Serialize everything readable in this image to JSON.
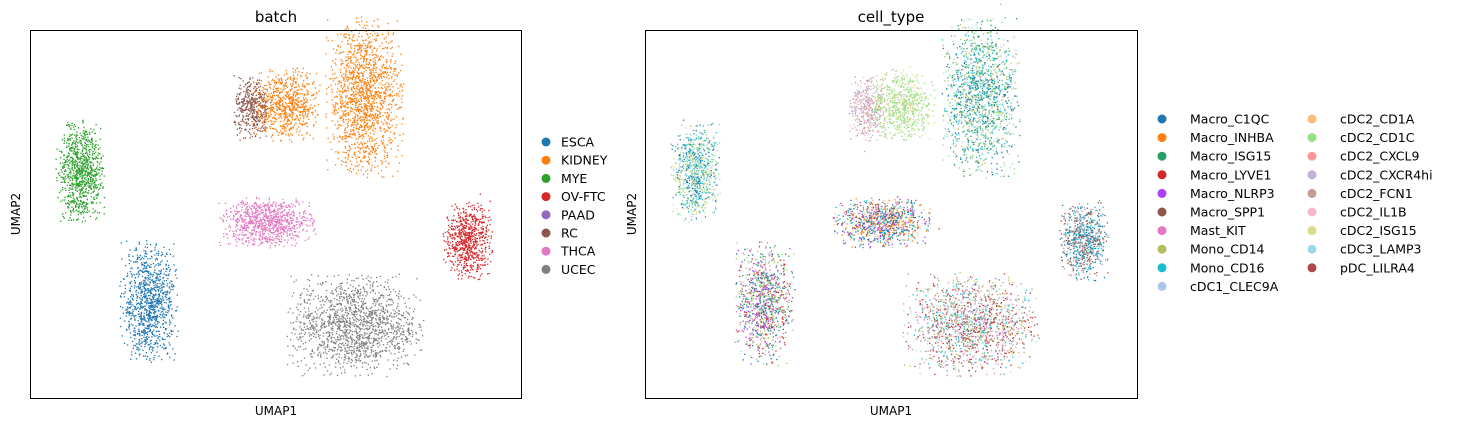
{
  "chart_data": [
    {
      "type": "scatter",
      "title": "batch",
      "xlabel": "UMAP1",
      "ylabel": "UMAP2",
      "grid": false,
      "ticks": false,
      "legend_position": "right",
      "legend": [
        {
          "name": "ESCA",
          "color": "#1f77b4"
        },
        {
          "name": "KIDNEY",
          "color": "#ff7f0e"
        },
        {
          "name": "MYE",
          "color": "#2ca02c"
        },
        {
          "name": "OV-FTC",
          "color": "#d62728"
        },
        {
          "name": "PAAD",
          "color": "#9467bd"
        },
        {
          "name": "RC",
          "color": "#8c564b"
        },
        {
          "name": "THCA",
          "color": "#e377c2"
        },
        {
          "name": "UCEC",
          "color": "#7f7f7f"
        }
      ],
      "clusters": [
        {
          "series": "MYE",
          "x": 0.1,
          "y": 0.62,
          "sx": 0.05,
          "sy": 0.14,
          "n": 900
        },
        {
          "series": "ESCA",
          "x": 0.24,
          "y": 0.26,
          "sx": 0.06,
          "sy": 0.17,
          "n": 1000
        },
        {
          "series": "THCA",
          "x": 0.48,
          "y": 0.48,
          "sx": 0.1,
          "sy": 0.07,
          "n": 900
        },
        {
          "series": "OV-FTC",
          "x": 0.89,
          "y": 0.43,
          "sx": 0.05,
          "sy": 0.11,
          "n": 700
        },
        {
          "series": "UCEC",
          "x": 0.66,
          "y": 0.2,
          "sx": 0.14,
          "sy": 0.14,
          "n": 1500
        },
        {
          "series": "RC",
          "x": 0.45,
          "y": 0.79,
          "sx": 0.04,
          "sy": 0.09,
          "n": 400
        },
        {
          "series": "KIDNEY",
          "x": 0.52,
          "y": 0.8,
          "sx": 0.07,
          "sy": 0.1,
          "n": 700
        },
        {
          "series": "KIDNEY",
          "x": 0.68,
          "y": 0.82,
          "sx": 0.08,
          "sy": 0.22,
          "n": 1500
        }
      ]
    },
    {
      "type": "scatter",
      "title": "cell_type",
      "xlabel": "UMAP1",
      "ylabel": "UMAP2",
      "grid": false,
      "ticks": false,
      "legend_position": "right",
      "legend": [
        {
          "name": "Macro_C1QC",
          "color": "#1f77b4"
        },
        {
          "name": "Macro_INHBA",
          "color": "#ff7f0e"
        },
        {
          "name": "Macro_ISG15",
          "color": "#279e68"
        },
        {
          "name": "Macro_LYVE1",
          "color": "#d62728"
        },
        {
          "name": "Macro_NLRP3",
          "color": "#aa40fc"
        },
        {
          "name": "Macro_SPP1",
          "color": "#8c564b"
        },
        {
          "name": "Mast_KIT",
          "color": "#e377c2"
        },
        {
          "name": "Mono_CD14",
          "color": "#b5bd61"
        },
        {
          "name": "Mono_CD16",
          "color": "#17becf"
        },
        {
          "name": "cDC1_CLEC9A",
          "color": "#aec7e8"
        },
        {
          "name": "cDC2_CD1A",
          "color": "#ffbb78"
        },
        {
          "name": "cDC2_CD1C",
          "color": "#98df8a"
        },
        {
          "name": "cDC2_CXCL9",
          "color": "#ff9896"
        },
        {
          "name": "cDC2_CXCR4hi",
          "color": "#c5b0d5"
        },
        {
          "name": "cDC2_FCN1",
          "color": "#c49c94"
        },
        {
          "name": "cDC2_IL1B",
          "color": "#f7b6d2"
        },
        {
          "name": "cDC2_ISG15",
          "color": "#dbdb8d"
        },
        {
          "name": "cDC3_LAMP3",
          "color": "#9edae5"
        },
        {
          "name": "pDC_LILRA4",
          "color": "#ad494a"
        }
      ],
      "clusters": [
        {
          "x": 0.1,
          "y": 0.62,
          "sx": 0.05,
          "sy": 0.14,
          "n": 900,
          "mix": [
            "cDC2_CD1C",
            "cDC3_LAMP3",
            "Macro_C1QC",
            "cDC2_ISG15",
            "Mono_CD16"
          ]
        },
        {
          "x": 0.24,
          "y": 0.26,
          "sx": 0.06,
          "sy": 0.17,
          "n": 1000,
          "mix": [
            "Macro_LYVE1",
            "Macro_C1QC",
            "Macro_NLRP3",
            "Mono_CD14",
            "Macro_ISG15",
            "Mast_KIT",
            "cDC2_CD1C"
          ]
        },
        {
          "x": 0.48,
          "y": 0.48,
          "sx": 0.1,
          "sy": 0.07,
          "n": 900,
          "mix": [
            "Macro_INHBA",
            "Macro_C1QC",
            "Macro_NLRP3",
            "Mono_CD16",
            "Macro_SPP1",
            "cDC2_CD1A"
          ]
        },
        {
          "x": 0.89,
          "y": 0.43,
          "sx": 0.05,
          "sy": 0.11,
          "n": 700,
          "mix": [
            "Macro_C1QC",
            "Macro_SPP1",
            "Mono_CD16",
            "cDC2_FCN1"
          ]
        },
        {
          "x": 0.66,
          "y": 0.2,
          "sx": 0.14,
          "sy": 0.14,
          "n": 1500,
          "mix": [
            "Mono_CD14",
            "Macro_SPP1",
            "cDC2_FCN1",
            "Macro_LYVE1",
            "Mono_CD16",
            "cDC3_LAMP3",
            "Mast_KIT"
          ]
        },
        {
          "x": 0.45,
          "y": 0.79,
          "sx": 0.04,
          "sy": 0.09,
          "n": 400,
          "mix": [
            "cDC2_IL1B",
            "cDC2_FCN1",
            "cDC2_CXCR4hi"
          ]
        },
        {
          "x": 0.52,
          "y": 0.8,
          "sx": 0.07,
          "sy": 0.1,
          "n": 700,
          "mix": [
            "cDC2_CD1C",
            "cDC2_CD1C",
            "cDC2_ISG15"
          ]
        },
        {
          "x": 0.68,
          "y": 0.82,
          "sx": 0.08,
          "sy": 0.22,
          "n": 1500,
          "mix": [
            "Mono_CD16",
            "cDC3_LAMP3",
            "Macro_C1QC",
            "Mono_CD14",
            "Macro_ISG15",
            "cDC2_CD1C"
          ]
        }
      ]
    }
  ]
}
